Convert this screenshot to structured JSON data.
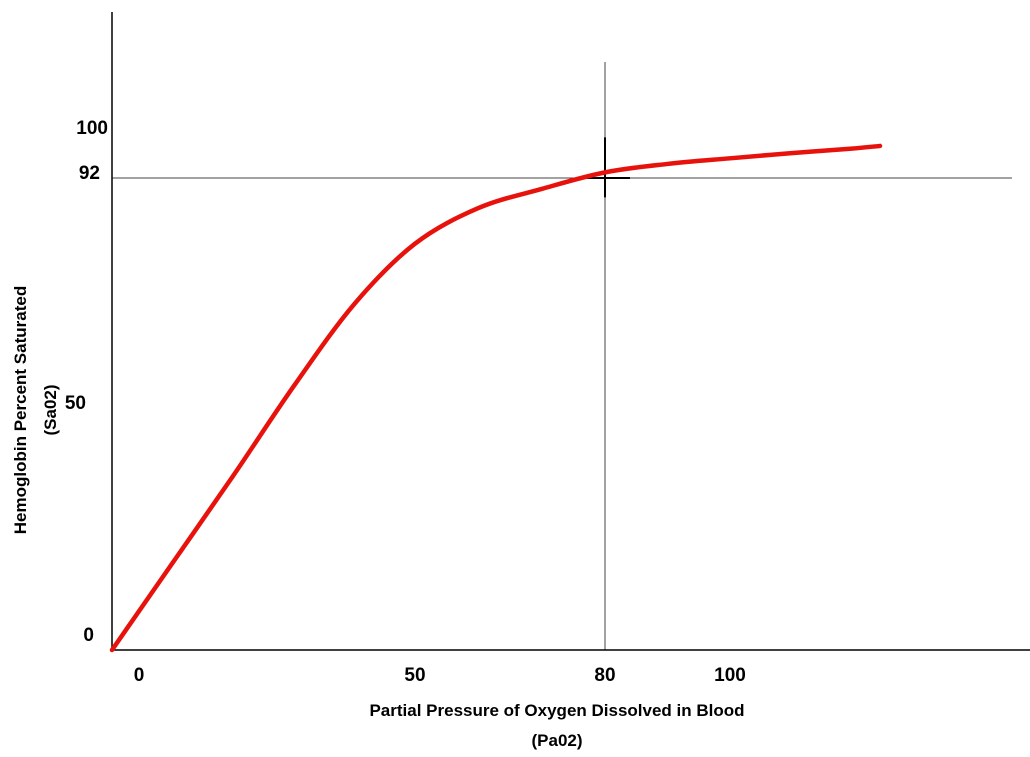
{
  "chart_data": {
    "type": "line",
    "title": "",
    "xlabel_lines": [
      "Partial Pressure of Oxygen Dissolved in Blood",
      "(Pa02)"
    ],
    "ylabel_lines": [
      "Hemoglobin Percent Saturated",
      "(Sa02)"
    ],
    "x_ticks": [
      {
        "value": 0,
        "label": "0"
      },
      {
        "value": 50,
        "label": "50"
      },
      {
        "value": 80,
        "label": "80"
      },
      {
        "value": 100,
        "label": "100"
      }
    ],
    "y_ticks": [
      {
        "value": 0,
        "label": "0"
      },
      {
        "value": 50,
        "label": "50"
      },
      {
        "value": 92,
        "label": "92"
      },
      {
        "value": 100,
        "label": "100"
      }
    ],
    "reference_lines": [
      {
        "axis": "x",
        "value": 80
      },
      {
        "axis": "y",
        "value": 92
      }
    ],
    "series": [
      {
        "color": "#e8120c",
        "x": [
          0,
          10,
          20,
          30,
          40,
          50,
          60,
          70,
          80,
          90,
          100,
          110,
          120,
          125
        ],
        "y": [
          0,
          18,
          36,
          54,
          69,
          80,
          86.5,
          90,
          93,
          94.5,
          95.5,
          96.4,
          97.2,
          97.7
        ]
      }
    ],
    "xlim": [
      0,
      150
    ],
    "ylim": [
      0,
      130
    ],
    "grid": false,
    "legend": "none"
  }
}
